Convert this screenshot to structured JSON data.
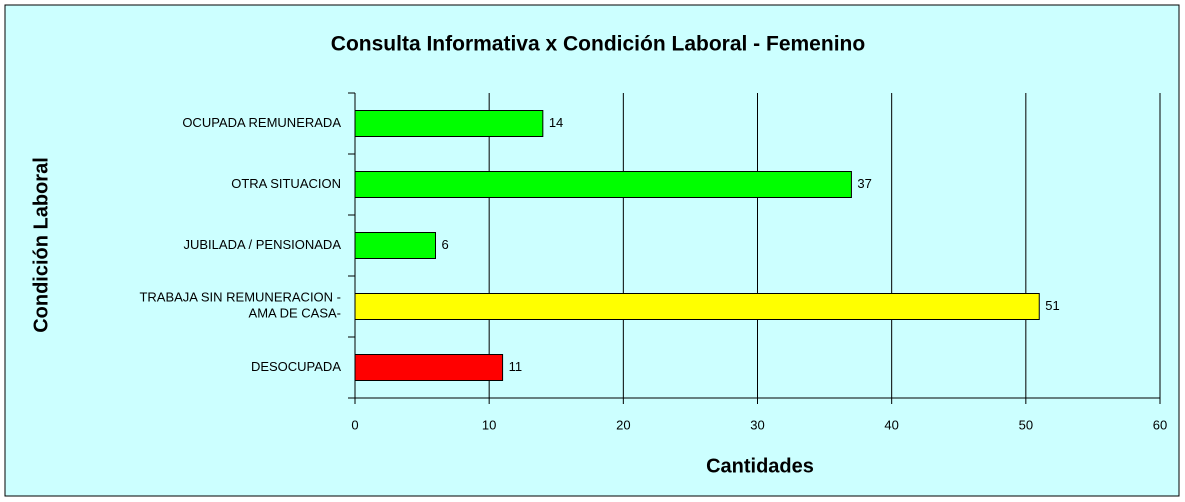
{
  "chart_data": {
    "type": "bar",
    "orientation": "horizontal",
    "title": "Consulta Informativa x Condición Laboral - Femenino",
    "x_label": "Cantidades",
    "y_label": "Condición Laboral",
    "categories": [
      "OCUPADA REMUNERADA",
      "OTRA SITUACION",
      "JUBILADA / PENSIONADA",
      "TRABAJA SIN REMUNERACION -\nAMA DE CASA-",
      "DESOCUPADA"
    ],
    "values": [
      14,
      37,
      6,
      51,
      11
    ],
    "colors": [
      "#00ff00",
      "#00ff00",
      "#00ff00",
      "#ffff00",
      "#ff0000"
    ],
    "xlim": [
      0,
      60
    ],
    "xticks": [
      0,
      10,
      20,
      30,
      40,
      50,
      60
    ],
    "grid": true
  }
}
